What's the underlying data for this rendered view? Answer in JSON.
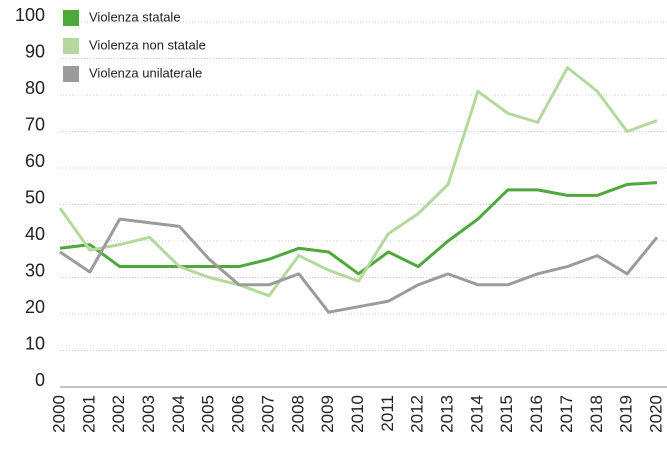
{
  "chart_data": {
    "type": "line",
    "categories": [
      "2000",
      "2001",
      "2002",
      "2003",
      "2004",
      "2005",
      "2006",
      "2007",
      "2008",
      "2009",
      "2010",
      "2011",
      "2012",
      "2013",
      "2014",
      "2015",
      "2016",
      "2017",
      "2018",
      "2019",
      "2020"
    ],
    "series": [
      {
        "name": "Violenza statale",
        "color": "#4ea83a",
        "values": [
          38,
          39,
          33,
          33,
          33,
          33,
          33,
          35,
          38,
          37,
          31,
          37,
          33,
          40,
          46,
          54,
          54,
          52.5,
          52.5,
          55.5,
          56
        ]
      },
      {
        "name": "Violenza non statale",
        "color": "#b5d99c",
        "values": [
          49,
          37.5,
          39,
          41,
          33,
          30,
          28,
          25,
          36,
          32,
          29,
          42,
          47.5,
          55.5,
          81,
          75,
          72.5,
          87.5,
          81,
          70,
          73
        ]
      },
      {
        "name": "Violenza unilaterale",
        "color": "#9b9b9b",
        "values": [
          37,
          31.5,
          46,
          45,
          44,
          35,
          28,
          28,
          31,
          20.5,
          22,
          23.5,
          28,
          31,
          28,
          28,
          31,
          33,
          36,
          31,
          41
        ]
      }
    ],
    "ylim": [
      0,
      100
    ],
    "yticks": [
      0,
      10,
      20,
      30,
      40,
      50,
      60,
      70,
      80,
      90,
      100
    ],
    "grid": true,
    "legend": "top-left"
  }
}
